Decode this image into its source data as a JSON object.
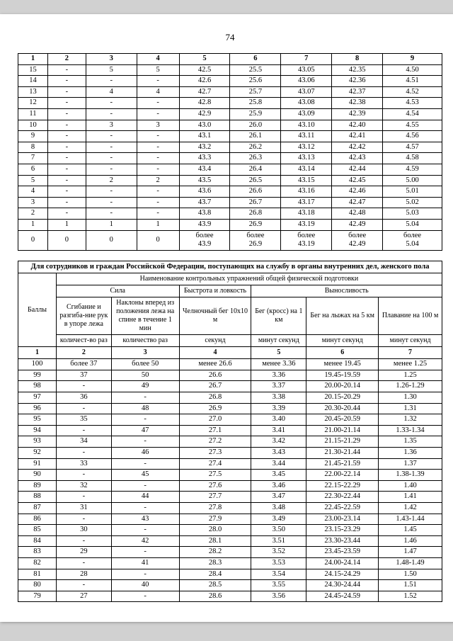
{
  "page_number": "74",
  "table1": {
    "head": [
      "1",
      "2",
      "3",
      "4",
      "5",
      "6",
      "7",
      "8",
      "9"
    ],
    "rows": [
      [
        "15",
        "-",
        "5",
        "5",
        "42.5",
        "25.5",
        "43.05",
        "42.35",
        "4.50"
      ],
      [
        "14",
        "-",
        "-",
        "-",
        "42.6",
        "25.6",
        "43.06",
        "42.36",
        "4.51"
      ],
      [
        "13",
        "-",
        "4",
        "4",
        "42.7",
        "25.7",
        "43.07",
        "42.37",
        "4.52"
      ],
      [
        "12",
        "-",
        "-",
        "-",
        "42.8",
        "25.8",
        "43.08",
        "42.38",
        "4.53"
      ],
      [
        "11",
        "-",
        "-",
        "-",
        "42.9",
        "25.9",
        "43.09",
        "42.39",
        "4.54"
      ],
      [
        "10",
        "-",
        "3",
        "3",
        "43.0",
        "26.0",
        "43.10",
        "42.40",
        "4.55"
      ],
      [
        "9",
        "-",
        "-",
        "-",
        "43.1",
        "26.1",
        "43.11",
        "42.41",
        "4.56"
      ],
      [
        "8",
        "-",
        "-",
        "-",
        "43.2",
        "26.2",
        "43.12",
        "42.42",
        "4.57"
      ],
      [
        "7",
        "-",
        "-",
        "-",
        "43.3",
        "26.3",
        "43.13",
        "42.43",
        "4.58"
      ],
      [
        "6",
        "-",
        "-",
        "-",
        "43.4",
        "26.4",
        "43.14",
        "42.44",
        "4.59"
      ],
      [
        "5",
        "-",
        "2",
        "2",
        "43.5",
        "26.5",
        "43.15",
        "42.45",
        "5.00"
      ],
      [
        "4",
        "-",
        "-",
        "-",
        "43.6",
        "26.6",
        "43.16",
        "42.46",
        "5.01"
      ],
      [
        "3",
        "-",
        "-",
        "-",
        "43.7",
        "26.7",
        "43.17",
        "42.47",
        "5.02"
      ],
      [
        "2",
        "-",
        "-",
        "-",
        "43.8",
        "26.8",
        "43.18",
        "42.48",
        "5.03"
      ],
      [
        "1",
        "1",
        "1",
        "1",
        "43.9",
        "26.9",
        "43.19",
        "42.49",
        "5.04"
      ],
      [
        "0",
        "0",
        "0",
        "0",
        "более\n43.9",
        "более\n26.9",
        "более\n43.19",
        "более\n42.49",
        "более\n5.04"
      ]
    ]
  },
  "table2": {
    "title": "Для сотрудников и граждан Российской Федерации, поступающих на службу в органы внутренних дел, женского пола",
    "header_top": "Наименование контрольных упражнений общей физической подготовки",
    "group_sila": "Сила",
    "group_bystrota": "Быстрота и ловкость",
    "group_vynos": "Выносливость",
    "col_bally": "Баллы",
    "col2_a": "Сгибание и разгиба-ние рук в упоре лежа",
    "col2_b": "Наклоны вперед из положения лежа на спине в течение 1 мин",
    "col3": "Челночный бег 10x10 м",
    "col4": "Бег (кросс) на 1 км",
    "col5": "Бег на лыжах на 5 км",
    "col6": "Плавание на 100 м",
    "unit_kolraz": "количест-во раз",
    "unit_kolraz2": "количество раз",
    "unit_sec": "секунд",
    "unit_minsec": "минут секунд",
    "head_nums": [
      "1",
      "2",
      "3",
      "4",
      "5",
      "6",
      "7"
    ],
    "rows": [
      [
        "100",
        "более 37",
        "более 50",
        "менее 26.6",
        "менее 3.36",
        "менее 19.45",
        "менее 1.25"
      ],
      [
        "99",
        "37",
        "50",
        "26.6",
        "3.36",
        "19.45-19.59",
        "1.25"
      ],
      [
        "98",
        "-",
        "49",
        "26.7",
        "3.37",
        "20.00-20.14",
        "1.26-1.29"
      ],
      [
        "97",
        "36",
        "-",
        "26.8",
        "3.38",
        "20.15-20.29",
        "1.30"
      ],
      [
        "96",
        "-",
        "48",
        "26.9",
        "3.39",
        "20.30-20.44",
        "1.31"
      ],
      [
        "95",
        "35",
        "-",
        "27.0",
        "3.40",
        "20.45-20.59",
        "1.32"
      ],
      [
        "94",
        "-",
        "47",
        "27.1",
        "3.41",
        "21.00-21.14",
        "1.33-1.34"
      ],
      [
        "93",
        "34",
        "-",
        "27.2",
        "3.42",
        "21.15-21.29",
        "1.35"
      ],
      [
        "92",
        "-",
        "46",
        "27.3",
        "3.43",
        "21.30-21.44",
        "1.36"
      ],
      [
        "91",
        "33",
        "-",
        "27.4",
        "3.44",
        "21.45-21.59",
        "1.37"
      ],
      [
        "90",
        "-",
        "45",
        "27.5",
        "3.45",
        "22.00-22.14",
        "1.38-1.39"
      ],
      [
        "89",
        "32",
        "-",
        "27.6",
        "3.46",
        "22.15-22.29",
        "1.40"
      ],
      [
        "88",
        "-",
        "44",
        "27.7",
        "3.47",
        "22.30-22.44",
        "1.41"
      ],
      [
        "87",
        "31",
        "-",
        "27.8",
        "3.48",
        "22.45-22.59",
        "1.42"
      ],
      [
        "86",
        "-",
        "43",
        "27.9",
        "3.49",
        "23.00-23.14",
        "1.43-1.44"
      ],
      [
        "85",
        "30",
        "-",
        "28.0",
        "3.50",
        "23.15-23.29",
        "1.45"
      ],
      [
        "84",
        "-",
        "42",
        "28.1",
        "3.51",
        "23.30-23.44",
        "1.46"
      ],
      [
        "83",
        "29",
        "-",
        "28.2",
        "3.52",
        "23.45-23.59",
        "1.47"
      ],
      [
        "82",
        "-",
        "41",
        "28.3",
        "3.53",
        "24.00-24.14",
        "1.48-1.49"
      ],
      [
        "81",
        "28",
        "-",
        "28.4",
        "3.54",
        "24.15-24.29",
        "1.50"
      ],
      [
        "80",
        "-",
        "40",
        "28.5",
        "3.55",
        "24.30-24.44",
        "1.51"
      ],
      [
        "79",
        "27",
        "-",
        "28.6",
        "3.56",
        "24.45-24.59",
        "1.52"
      ]
    ]
  }
}
